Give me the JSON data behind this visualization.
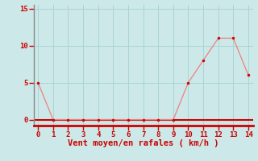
{
  "x": [
    0,
    1,
    2,
    3,
    4,
    5,
    6,
    7,
    8,
    9,
    10,
    11,
    12,
    13,
    14
  ],
  "y": [
    5,
    0,
    0,
    0,
    0,
    0,
    0,
    0,
    0,
    0,
    5,
    8,
    11,
    11,
    6
  ],
  "line_color": "#f08080",
  "marker_color": "#cc0000",
  "background_color": "#cce8e8",
  "grid_color": "#aad4d4",
  "xlabel": "Vent moyen/en rafales ( km/h )",
  "xlabel_color": "#cc0000",
  "tick_color": "#cc0000",
  "axis_color": "#888888",
  "bottom_spine_color": "#cc0000",
  "xlim": [
    -0.3,
    14.3
  ],
  "ylim": [
    -0.8,
    15.5
  ],
  "yticks": [
    0,
    5,
    10,
    15
  ],
  "xticks": [
    0,
    1,
    2,
    3,
    4,
    5,
    6,
    7,
    8,
    9,
    10,
    11,
    12,
    13,
    14
  ],
  "tick_fontsize": 6.5,
  "xlabel_fontsize": 7.5
}
